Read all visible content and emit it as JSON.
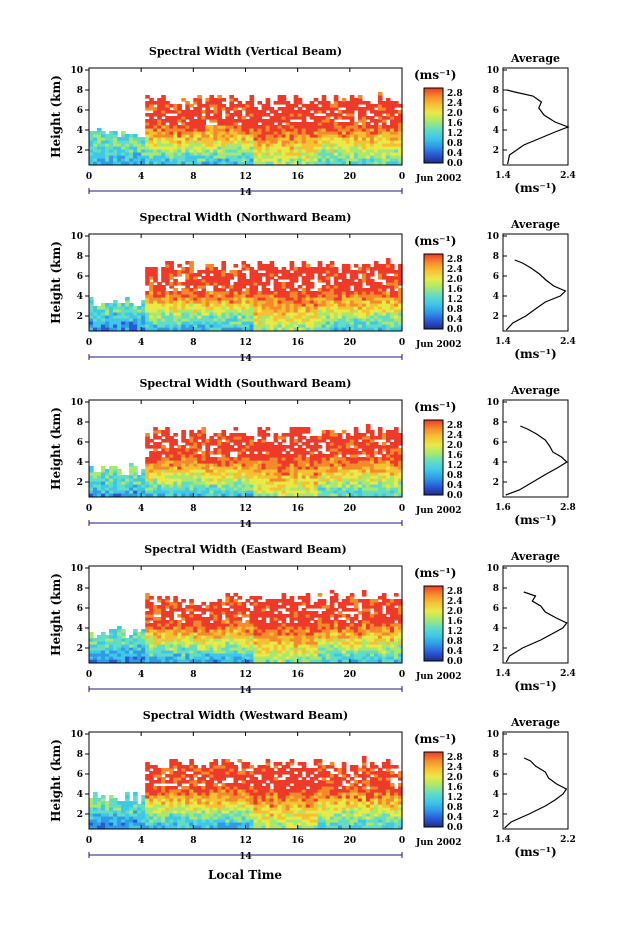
{
  "shared": {
    "ylabel": "Height (km)",
    "y_ticks": [
      "10",
      "8",
      "6",
      "4",
      "2"
    ],
    "x_ticks": [
      "0",
      "4",
      "8",
      "12",
      "16",
      "20",
      "0"
    ],
    "day_label": "14",
    "date_label": "Jun 2002",
    "xlabel": "Local Time",
    "cbar_unit": "(ms⁻¹)",
    "cbar_ticks": [
      "2.8",
      "2.4",
      "2.0",
      "1.6",
      "1.2",
      "0.8",
      "0.4",
      "0.0"
    ],
    "avg_title": "Average",
    "avg_xlabel": "(ms⁻¹)",
    "avg_y_ticks": [
      "10",
      "8",
      "6",
      "4",
      "2"
    ]
  },
  "colors": {
    "colormap": [
      "#1c2d8a",
      "#2b58d6",
      "#2f9ae8",
      "#3ec7e8",
      "#62dcc4",
      "#a8e870",
      "#e8ea48",
      "#f7c033",
      "#f58a2b",
      "#ee3a28"
    ]
  },
  "chart_data": [
    {
      "type": "heatmap",
      "title": "Spectral Width (Vertical Beam)",
      "xlabel": "Local Time",
      "ylabel": "Height (km)",
      "xlim": [
        0,
        24
      ],
      "ylim": [
        0.5,
        10.2
      ],
      "unit": "ms⁻¹",
      "clim": [
        0.0,
        3.0
      ],
      "segments": [
        {
          "t0": 0,
          "t1": 4.3,
          "top": 4.0,
          "v": [
            0.9,
            1.4
          ]
        },
        {
          "t0": 4.3,
          "t1": 12.5,
          "top": 7.5,
          "v": [
            1.0,
            2.9
          ]
        },
        {
          "t0": 12.5,
          "t1": 17.5,
          "top": 7.5,
          "v": [
            1.6,
            3.0
          ]
        },
        {
          "t0": 17.5,
          "t1": 24,
          "top": 7.6,
          "v": [
            1.2,
            2.9
          ]
        }
      ],
      "avg": {
        "xlim": [
          1.4,
          2.4
        ],
        "xticks": [
          "1.4",
          "2.4"
        ],
        "profile": [
          [
            0.6,
            1.47
          ],
          [
            1.5,
            1.5
          ],
          [
            2.5,
            1.72
          ],
          [
            3.2,
            1.98
          ],
          [
            3.8,
            2.2
          ],
          [
            4.3,
            2.4
          ],
          [
            4.8,
            2.2
          ],
          [
            5.5,
            2.03
          ],
          [
            6.2,
            1.95
          ],
          [
            6.8,
            1.99
          ],
          [
            7.4,
            1.86
          ],
          [
            7.8,
            1.58
          ],
          [
            8.0,
            1.46
          ]
        ]
      }
    },
    {
      "type": "heatmap",
      "title": "Spectral Width (Northward Beam)",
      "xlabel": "Local Time",
      "ylabel": "Height (km)",
      "xlim": [
        0,
        24
      ],
      "ylim": [
        0.5,
        10.2
      ],
      "unit": "ms⁻¹",
      "clim": [
        0.0,
        3.0
      ],
      "segments": [
        {
          "t0": 0,
          "t1": 4.3,
          "top": 4.0,
          "v": [
            0.6,
            1.3
          ]
        },
        {
          "t0": 4.3,
          "t1": 12.5,
          "top": 7.5,
          "v": [
            0.9,
            2.9
          ]
        },
        {
          "t0": 12.5,
          "t1": 17.5,
          "top": 7.5,
          "v": [
            1.6,
            3.0
          ]
        },
        {
          "t0": 17.5,
          "t1": 24,
          "top": 7.6,
          "v": [
            1.1,
            2.9
          ]
        }
      ],
      "avg": {
        "xlim": [
          1.4,
          2.4
        ],
        "xticks": [
          "1.4",
          "2.4"
        ],
        "profile": [
          [
            0.6,
            1.45
          ],
          [
            1.3,
            1.55
          ],
          [
            2.0,
            1.75
          ],
          [
            2.8,
            1.92
          ],
          [
            3.4,
            2.05
          ],
          [
            4.0,
            2.28
          ],
          [
            4.5,
            2.36
          ],
          [
            5.0,
            2.18
          ],
          [
            5.6,
            2.06
          ],
          [
            6.2,
            1.96
          ],
          [
            6.8,
            1.83
          ],
          [
            7.3,
            1.7
          ],
          [
            7.6,
            1.58
          ]
        ]
      }
    },
    {
      "type": "heatmap",
      "title": "Spectral Width (Southward Beam)",
      "xlabel": "Local Time",
      "ylabel": "Height (km)",
      "xlim": [
        0,
        24
      ],
      "ylim": [
        0.5,
        10.2
      ],
      "unit": "ms⁻¹",
      "clim": [
        0.0,
        3.0
      ],
      "segments": [
        {
          "t0": 0,
          "t1": 4.3,
          "top": 3.8,
          "v": [
            0.8,
            1.4
          ]
        },
        {
          "t0": 4.3,
          "t1": 12.5,
          "top": 7.5,
          "v": [
            1.0,
            2.9
          ]
        },
        {
          "t0": 12.5,
          "t1": 17.5,
          "top": 7.5,
          "v": [
            1.7,
            3.0
          ]
        },
        {
          "t0": 17.5,
          "t1": 24,
          "top": 7.6,
          "v": [
            1.2,
            2.9
          ]
        }
      ],
      "avg": {
        "xlim": [
          1.6,
          2.8
        ],
        "xticks": [
          "1.6",
          "2.8"
        ],
        "profile": [
          [
            0.7,
            1.65
          ],
          [
            1.2,
            1.9
          ],
          [
            2.0,
            2.15
          ],
          [
            2.8,
            2.4
          ],
          [
            3.4,
            2.6
          ],
          [
            4.0,
            2.78
          ],
          [
            4.5,
            2.68
          ],
          [
            5.0,
            2.52
          ],
          [
            5.6,
            2.46
          ],
          [
            6.2,
            2.38
          ],
          [
            6.8,
            2.22
          ],
          [
            7.3,
            2.05
          ],
          [
            7.6,
            1.92
          ]
        ]
      }
    },
    {
      "type": "heatmap",
      "title": "Spectral Width (Eastward Beam)",
      "xlabel": "Local Time",
      "ylabel": "Height (km)",
      "xlim": [
        0,
        24
      ],
      "ylim": [
        0.5,
        10.2
      ],
      "unit": "ms⁻¹",
      "clim": [
        0.0,
        3.0
      ],
      "segments": [
        {
          "t0": 0,
          "t1": 4.3,
          "top": 4.0,
          "v": [
            0.6,
            1.3
          ]
        },
        {
          "t0": 4.3,
          "t1": 12.5,
          "top": 7.5,
          "v": [
            0.8,
            2.9
          ]
        },
        {
          "t0": 12.5,
          "t1": 17.5,
          "top": 7.5,
          "v": [
            1.5,
            3.0
          ]
        },
        {
          "t0": 17.5,
          "t1": 24,
          "top": 7.6,
          "v": [
            1.1,
            2.9
          ]
        }
      ],
      "avg": {
        "xlim": [
          1.4,
          2.4
        ],
        "xticks": [
          "1.4",
          "2.4"
        ],
        "profile": [
          [
            0.6,
            1.45
          ],
          [
            1.2,
            1.5
          ],
          [
            2.0,
            1.7
          ],
          [
            2.8,
            1.98
          ],
          [
            3.4,
            2.15
          ],
          [
            4.0,
            2.32
          ],
          [
            4.5,
            2.38
          ],
          [
            5.0,
            2.22
          ],
          [
            5.6,
            2.05
          ],
          [
            6.2,
            1.98
          ],
          [
            6.7,
            1.85
          ],
          [
            7.2,
            1.9
          ],
          [
            7.6,
            1.72
          ]
        ]
      }
    },
    {
      "type": "heatmap",
      "title": "Spectral Width (Westward Beam)",
      "xlabel": "Local Time",
      "ylabel": "Height (km)",
      "xlim": [
        0,
        24
      ],
      "ylim": [
        0.5,
        10.2
      ],
      "unit": "ms⁻¹",
      "clim": [
        0.0,
        3.0
      ],
      "segments": [
        {
          "t0": 0,
          "t1": 4.3,
          "top": 4.0,
          "v": [
            0.6,
            1.4
          ]
        },
        {
          "t0": 4.3,
          "t1": 12.5,
          "top": 7.5,
          "v": [
            0.9,
            2.9
          ]
        },
        {
          "t0": 12.5,
          "t1": 17.5,
          "top": 7.5,
          "v": [
            1.6,
            3.0
          ]
        },
        {
          "t0": 17.5,
          "t1": 24,
          "top": 7.6,
          "v": [
            1.1,
            2.9
          ]
        }
      ],
      "avg": {
        "xlim": [
          1.4,
          2.2
        ],
        "xticks": [
          "1.4",
          "2.2"
        ],
        "profile": [
          [
            0.6,
            1.42
          ],
          [
            1.2,
            1.5
          ],
          [
            2.0,
            1.72
          ],
          [
            2.8,
            1.92
          ],
          [
            3.4,
            2.04
          ],
          [
            4.0,
            2.14
          ],
          [
            4.5,
            2.18
          ],
          [
            5.0,
            2.06
          ],
          [
            5.6,
            1.96
          ],
          [
            6.2,
            1.92
          ],
          [
            6.8,
            1.8
          ],
          [
            7.3,
            1.74
          ],
          [
            7.6,
            1.66
          ]
        ]
      }
    }
  ]
}
